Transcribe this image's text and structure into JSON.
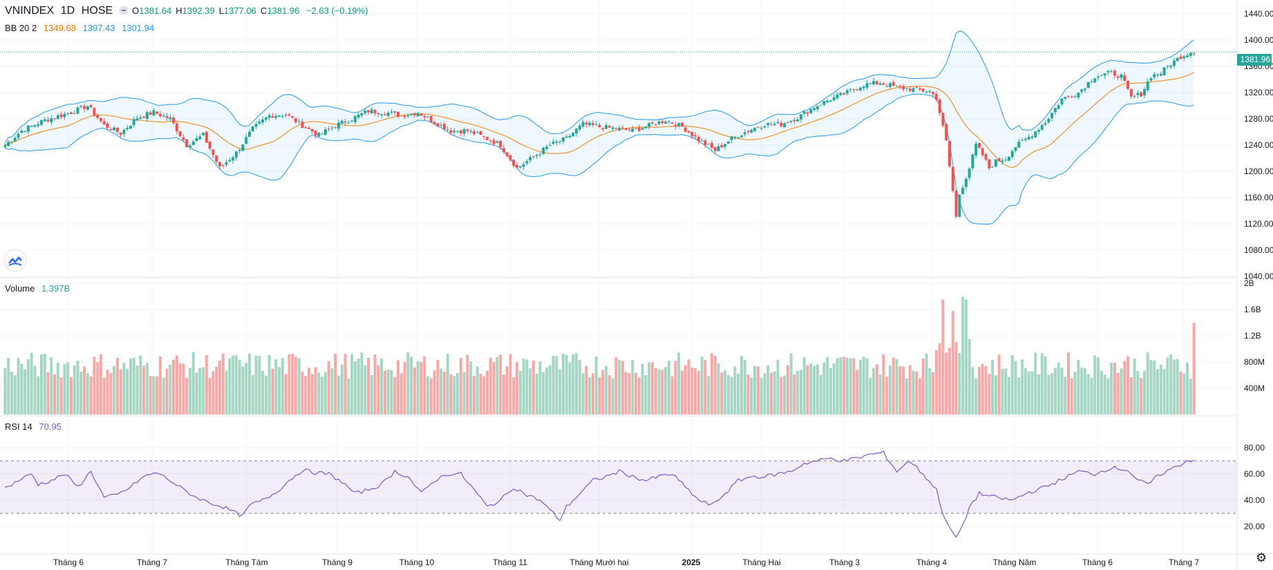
{
  "header": {
    "symbol": "VNINDEX",
    "interval": "1D",
    "exchange": "HOSE",
    "open_label": "O",
    "open": "1381.64",
    "high_label": "H",
    "high": "1392.39",
    "low_label": "L",
    "low": "1377.06",
    "close_label": "C",
    "close": "1381.96",
    "change": "−2.63 (−0.19%)"
  },
  "bb_legend": {
    "name": "BB 20 2",
    "basis": "1349.68",
    "upper": "1397.43",
    "lower": "1301.94"
  },
  "volume_legend": {
    "name": "Volume",
    "value": "1.397B"
  },
  "rsi_legend": {
    "name": "RSI 14",
    "value": "70.95"
  },
  "last_price_tag": "1381.96",
  "colors": {
    "up": "#26a69a",
    "down": "#ef5350",
    "bb_basis": "#f57c00",
    "bb_band": "#2196f3",
    "rsi": "#7e57c2",
    "vol_up": "#a5d6c3",
    "vol_down": "#f7a9a7"
  },
  "chart_data": {
    "type": "candlestick",
    "price_axis": {
      "ticks": [
        "1440.00",
        "1400.00",
        "1360.00",
        "1320.00",
        "1280.00",
        "1240.00",
        "1200.00",
        "1160.00",
        "1120.00",
        "1080.00",
        "1040.00"
      ],
      "range": [
        1040,
        1440
      ]
    },
    "volume_axis": {
      "ticks": [
        "2B",
        "1.6B",
        "1.2B",
        "800M",
        "400M"
      ],
      "range": [
        0,
        2000000000
      ]
    },
    "rsi_axis": {
      "ticks": [
        "80.00",
        "60.00",
        "40.00",
        "20.00"
      ],
      "range": [
        0,
        100
      ],
      "bands": [
        30,
        70
      ]
    },
    "x_axis": {
      "ticks": [
        "Tháng 6",
        "Tháng 7",
        "Tháng Tám",
        "Tháng 9",
        "Tháng 10",
        "Tháng 11",
        "Tháng Mười hai",
        "2025",
        "Tháng Hai",
        "Tháng 3",
        "Tháng 4",
        "Tháng Năm",
        "Tháng 6",
        "Tháng 7"
      ]
    },
    "close_keypoints": [
      [
        0,
        1240
      ],
      [
        5,
        1262
      ],
      [
        12,
        1278
      ],
      [
        20,
        1290
      ],
      [
        25,
        1300
      ],
      [
        30,
        1270
      ],
      [
        35,
        1258
      ],
      [
        40,
        1282
      ],
      [
        45,
        1290
      ],
      [
        50,
        1280
      ],
      [
        55,
        1240
      ],
      [
        60,
        1255
      ],
      [
        65,
        1205
      ],
      [
        70,
        1228
      ],
      [
        75,
        1265
      ],
      [
        80,
        1285
      ],
      [
        85,
        1287
      ],
      [
        90,
        1270
      ],
      [
        95,
        1255
      ],
      [
        100,
        1270
      ],
      [
        105,
        1280
      ],
      [
        110,
        1292
      ],
      [
        115,
        1290
      ],
      [
        120,
        1285
      ],
      [
        125,
        1290
      ],
      [
        130,
        1275
      ],
      [
        135,
        1262
      ],
      [
        140,
        1262
      ],
      [
        145,
        1252
      ],
      [
        150,
        1240
      ],
      [
        155,
        1205
      ],
      [
        160,
        1222
      ],
      [
        165,
        1240
      ],
      [
        170,
        1250
      ],
      [
        175,
        1272
      ],
      [
        180,
        1268
      ],
      [
        185,
        1265
      ],
      [
        190,
        1262
      ],
      [
        195,
        1270
      ],
      [
        200,
        1278
      ],
      [
        205,
        1268
      ],
      [
        210,
        1248
      ],
      [
        215,
        1232
      ],
      [
        220,
        1250
      ],
      [
        225,
        1262
      ],
      [
        230,
        1272
      ],
      [
        235,
        1272
      ],
      [
        240,
        1282
      ],
      [
        245,
        1298
      ],
      [
        250,
        1310
      ],
      [
        255,
        1320
      ],
      [
        260,
        1332
      ],
      [
        265,
        1335
      ],
      [
        270,
        1328
      ],
      [
        275,
        1325
      ],
      [
        280,
        1322
      ],
      [
        282,
        1312
      ],
      [
        285,
        1245
      ],
      [
        287,
        1170
      ],
      [
        288,
        1130
      ],
      [
        289,
        1165
      ],
      [
        292,
        1205
      ],
      [
        294,
        1240
      ],
      [
        296,
        1225
      ],
      [
        298,
        1205
      ],
      [
        300,
        1215
      ],
      [
        303,
        1220
      ],
      [
        306,
        1238
      ],
      [
        310,
        1252
      ],
      [
        315,
        1275
      ],
      [
        320,
        1310
      ],
      [
        325,
        1320
      ],
      [
        330,
        1345
      ],
      [
        335,
        1350
      ],
      [
        338,
        1345
      ],
      [
        341,
        1312
      ],
      [
        344,
        1318
      ],
      [
        347,
        1345
      ],
      [
        350,
        1350
      ],
      [
        352,
        1360
      ],
      [
        356,
        1375
      ],
      [
        359,
        1382
      ],
      [
        360,
        1382
      ]
    ],
    "volume_level_note": "",
    "rsi_keypoints": [
      [
        0,
        49
      ],
      [
        4,
        55
      ],
      [
        8,
        60
      ],
      [
        10,
        52
      ],
      [
        14,
        55
      ],
      [
        18,
        60
      ],
      [
        22,
        50
      ],
      [
        26,
        62
      ],
      [
        30,
        42
      ],
      [
        34,
        44
      ],
      [
        38,
        50
      ],
      [
        42,
        58
      ],
      [
        46,
        61
      ],
      [
        50,
        55
      ],
      [
        54,
        48
      ],
      [
        58,
        42
      ],
      [
        62,
        38
      ],
      [
        66,
        35
      ],
      [
        70,
        30
      ],
      [
        72,
        28
      ],
      [
        74,
        36
      ],
      [
        78,
        40
      ],
      [
        82,
        46
      ],
      [
        86,
        55
      ],
      [
        90,
        63
      ],
      [
        94,
        61
      ],
      [
        98,
        60
      ],
      [
        102,
        54
      ],
      [
        106,
        45
      ],
      [
        110,
        48
      ],
      [
        114,
        52
      ],
      [
        118,
        62
      ],
      [
        122,
        58
      ],
      [
        126,
        45
      ],
      [
        130,
        55
      ],
      [
        134,
        60
      ],
      [
        138,
        60
      ],
      [
        142,
        48
      ],
      [
        146,
        35
      ],
      [
        150,
        40
      ],
      [
        154,
        50
      ],
      [
        158,
        44
      ],
      [
        162,
        40
      ],
      [
        166,
        30
      ],
      [
        168,
        25
      ],
      [
        170,
        35
      ],
      [
        174,
        45
      ],
      [
        178,
        55
      ],
      [
        182,
        58
      ],
      [
        186,
        62
      ],
      [
        190,
        58
      ],
      [
        194,
        55
      ],
      [
        198,
        58
      ],
      [
        202,
        60
      ],
      [
        206,
        50
      ],
      [
        210,
        40
      ],
      [
        214,
        36
      ],
      [
        218,
        45
      ],
      [
        222,
        55
      ],
      [
        226,
        58
      ],
      [
        230,
        58
      ],
      [
        234,
        60
      ],
      [
        238,
        62
      ],
      [
        242,
        68
      ],
      [
        246,
        70
      ],
      [
        250,
        72
      ],
      [
        254,
        70
      ],
      [
        258,
        72
      ],
      [
        262,
        75
      ],
      [
        266,
        76
      ],
      [
        270,
        62
      ],
      [
        274,
        70
      ],
      [
        278,
        60
      ],
      [
        282,
        48
      ],
      [
        284,
        30
      ],
      [
        286,
        18
      ],
      [
        288,
        12
      ],
      [
        290,
        20
      ],
      [
        292,
        35
      ],
      [
        295,
        45
      ],
      [
        300,
        42
      ],
      [
        305,
        40
      ],
      [
        310,
        46
      ],
      [
        315,
        50
      ],
      [
        320,
        56
      ],
      [
        325,
        62
      ],
      [
        330,
        60
      ],
      [
        335,
        65
      ],
      [
        340,
        63
      ],
      [
        343,
        55
      ],
      [
        346,
        52
      ],
      [
        350,
        60
      ],
      [
        355,
        66
      ],
      [
        358,
        70
      ],
      [
        360,
        71
      ]
    ]
  }
}
